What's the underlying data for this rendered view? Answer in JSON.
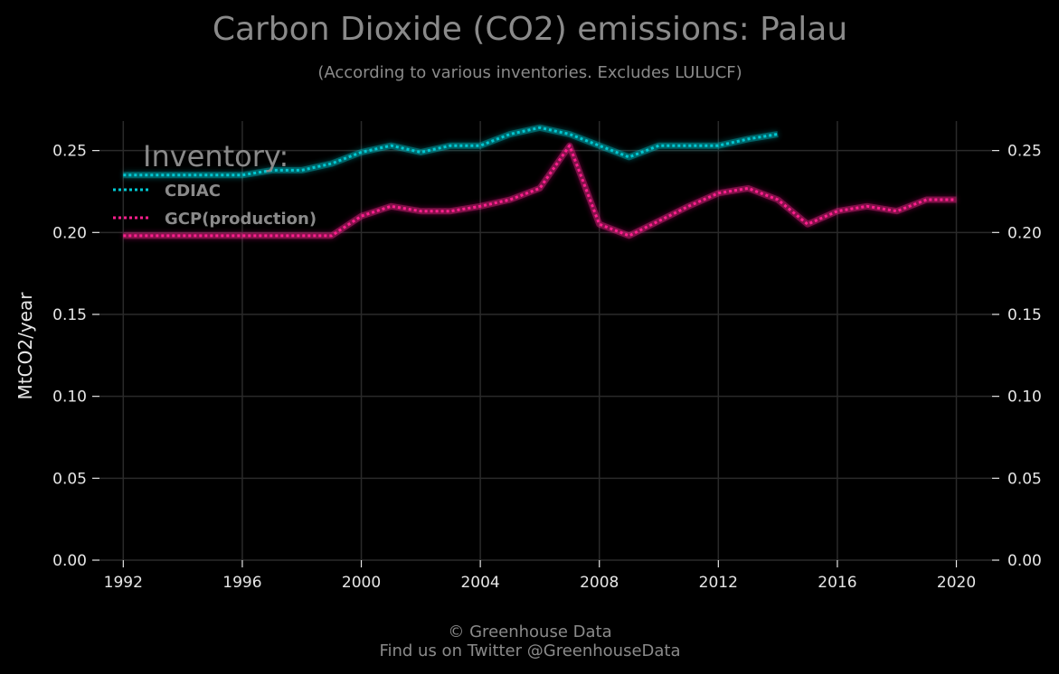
{
  "chart_data": {
    "type": "line",
    "title": "Carbon Dioxide (CO2) emissions: Palau",
    "subtitle": "(According to various inventories. Excludes LULUCF)",
    "ylabel": "MtCO2/year",
    "xlim": [
      1991.2,
      2021.2
    ],
    "ylim": [
      0,
      0.268
    ],
    "x_ticks": [
      1992,
      1996,
      2000,
      2004,
      2008,
      2012,
      2016,
      2020
    ],
    "y_ticks": [
      0.0,
      0.05,
      0.1,
      0.15,
      0.2,
      0.25
    ],
    "y_tick_labels": [
      "0.00",
      "0.05",
      "0.10",
      "0.15",
      "0.20",
      "0.25"
    ],
    "grid": true,
    "legend_title": "Inventory:",
    "legend_position": "top-left",
    "series": [
      {
        "name": "CDIAC",
        "color": "#00c8d2",
        "x": [
          1992,
          1993,
          1994,
          1995,
          1996,
          1997,
          1998,
          1999,
          2000,
          2001,
          2002,
          2003,
          2004,
          2005,
          2006,
          2007,
          2008,
          2009,
          2010,
          2011,
          2012,
          2013,
          2014
        ],
        "values": [
          0.235,
          0.235,
          0.235,
          0.235,
          0.235,
          0.238,
          0.238,
          0.242,
          0.249,
          0.253,
          0.249,
          0.253,
          0.253,
          0.26,
          0.264,
          0.26,
          0.253,
          0.246,
          0.253,
          0.253,
          0.253,
          0.257,
          0.26
        ]
      },
      {
        "name": "GCP(production)",
        "color": "#ff1f8e",
        "x": [
          1992,
          1993,
          1994,
          1995,
          1996,
          1997,
          1998,
          1999,
          2000,
          2001,
          2002,
          2003,
          2004,
          2005,
          2006,
          2007,
          2008,
          2009,
          2010,
          2011,
          2012,
          2013,
          2014,
          2015,
          2016,
          2017,
          2018,
          2019,
          2020
        ],
        "values": [
          0.198,
          0.198,
          0.198,
          0.198,
          0.198,
          0.198,
          0.198,
          0.198,
          0.21,
          0.216,
          0.213,
          0.213,
          0.216,
          0.22,
          0.227,
          0.253,
          0.205,
          0.198,
          0.207,
          0.216,
          0.224,
          0.227,
          0.22,
          0.205,
          0.213,
          0.216,
          0.213,
          0.22,
          0.22
        ]
      }
    ]
  },
  "footer": {
    "line1": "© Greenhouse Data",
    "line2": "Find us on Twitter @GreenhouseData"
  }
}
